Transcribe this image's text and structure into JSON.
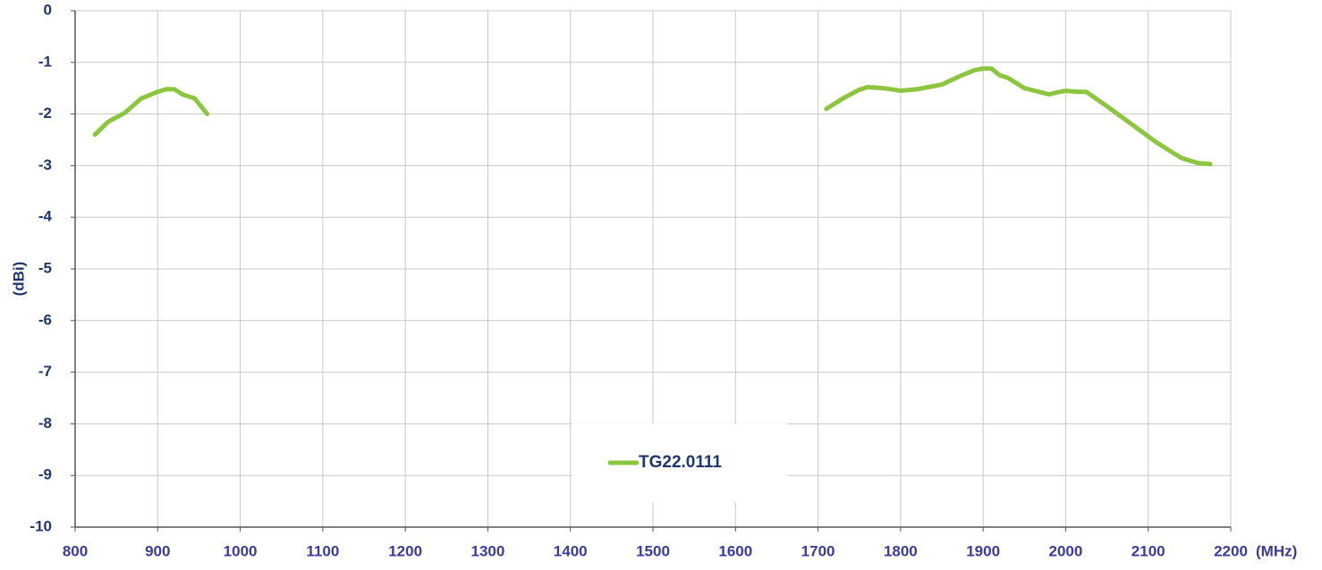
{
  "chart_data": {
    "type": "line",
    "y_label": "(dBi)",
    "x_unit": "(MHz)",
    "xlim": [
      800,
      2200
    ],
    "xticks": [
      800,
      900,
      1000,
      1100,
      1200,
      1300,
      1400,
      1500,
      1600,
      1700,
      1800,
      1900,
      2000,
      2100,
      2200
    ],
    "ylim": [
      -10,
      0
    ],
    "yticks": [
      0,
      -1,
      -2,
      -3,
      -4,
      -5,
      -6,
      -7,
      -8,
      -9,
      -10
    ],
    "grid": true,
    "legend_position": "lower center",
    "x": [
      824,
      840,
      860,
      880,
      900,
      910,
      920,
      930,
      945,
      960,
      null,
      1710,
      1730,
      1750,
      1760,
      1780,
      1800,
      1820,
      1850,
      1870,
      1890,
      1900,
      1910,
      1920,
      1930,
      1950,
      1980,
      1990,
      2000,
      2015,
      2025,
      2050,
      2080,
      2110,
      2140,
      2160,
      2175
    ],
    "series": [
      {
        "name": "TG22.0111",
        "color": "#8cc63f",
        "values": [
          -2.4,
          -2.15,
          -1.98,
          -1.7,
          -1.57,
          -1.52,
          -1.52,
          -1.62,
          -1.7,
          -2.0,
          null,
          -1.9,
          -1.7,
          -1.53,
          -1.48,
          -1.5,
          -1.55,
          -1.52,
          -1.43,
          -1.28,
          -1.15,
          -1.12,
          -1.12,
          -1.25,
          -1.3,
          -1.5,
          -1.62,
          -1.58,
          -1.55,
          -1.57,
          -1.57,
          -1.85,
          -2.2,
          -2.55,
          -2.85,
          -2.95,
          -2.97
        ]
      }
    ]
  }
}
